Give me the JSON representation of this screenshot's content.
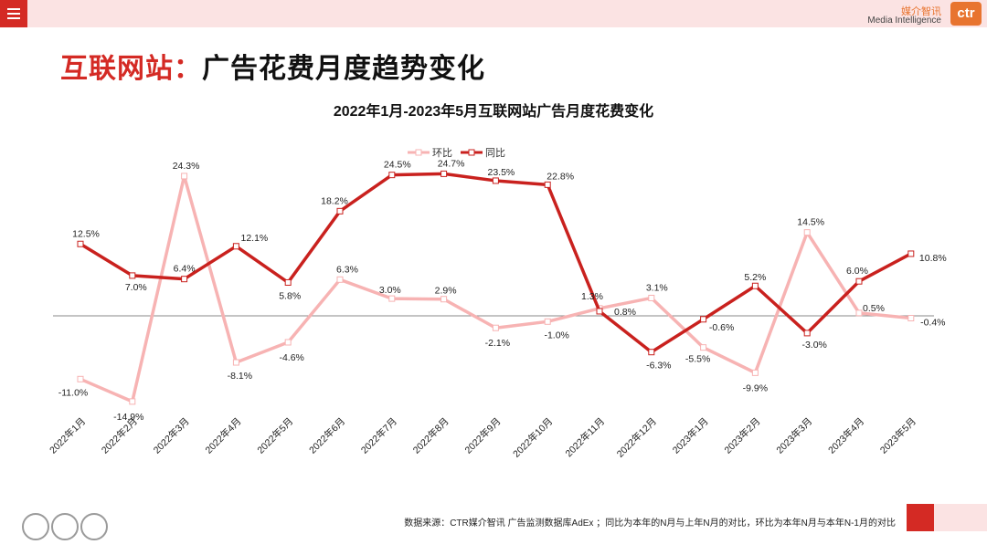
{
  "header": {
    "brand_cn": "媒介智讯",
    "brand_en": "Media Intelligence",
    "brand_logo": "ctr",
    "menu_icon": "hamburger-icon"
  },
  "page": {
    "title_highlight": "互联网站：",
    "title_rest": "广告花费月度趋势变化"
  },
  "footer": {
    "source": "数据来源：CTR媒介智讯 广告监测数据库AdEx ；同比为本年的N月与上年N月的对比，环比为本年N月与本年N-1月的对比"
  },
  "colors": {
    "accent": "#d42a24",
    "light_series": "#f7b3b3",
    "pink_bar": "#fbe3e3"
  },
  "chart_data": {
    "type": "line",
    "title": "2022年1月-2023年5月互联网站广告月度花费变化",
    "categories": [
      "2022年1月",
      "2022年2月",
      "2022年3月",
      "2022年4月",
      "2022年5月",
      "2022年6月",
      "2022年7月",
      "2022年8月",
      "2022年9月",
      "2022年10月",
      "2022年11月",
      "2022年12月",
      "2023年1月",
      "2023年2月",
      "2023年3月",
      "2023年4月",
      "2023年5月"
    ],
    "series": [
      {
        "name": "环比",
        "color": "#f7b3b3",
        "values": [
          -11.0,
          -14.9,
          24.3,
          -8.1,
          -4.6,
          6.3,
          3.0,
          2.9,
          -2.1,
          -1.0,
          1.3,
          3.1,
          -5.5,
          -9.9,
          14.5,
          0.5,
          -0.4
        ],
        "labels": [
          "-11.0%",
          "-14.9%",
          "24.3%",
          "-8.1%",
          "-4.6%",
          "6.3%",
          "3.0%",
          "2.9%",
          "-2.1%",
          "-1.0%",
          "1.3%",
          "3.1%",
          "-5.5%",
          "-9.9%",
          "14.5%",
          "0.5%",
          "-0.4%"
        ]
      },
      {
        "name": "同比",
        "color": "#c9211e",
        "values": [
          12.5,
          7.0,
          6.4,
          12.1,
          5.8,
          18.2,
          24.5,
          24.7,
          23.5,
          22.8,
          0.8,
          -6.3,
          -0.6,
          5.2,
          -3.0,
          6.0,
          10.8
        ],
        "labels": [
          "12.5%",
          "7.0%",
          "6.4%",
          "12.1%",
          "5.8%",
          "18.2%",
          "24.5%",
          "24.7%",
          "23.5%",
          "22.8%",
          "0.8%",
          "-6.3%",
          "-0.6%",
          "5.2%",
          "-3.0%",
          "6.0%",
          "10.8%"
        ]
      }
    ],
    "ylim": [
      -15,
      25
    ],
    "legend": "top-center",
    "grid": false
  }
}
